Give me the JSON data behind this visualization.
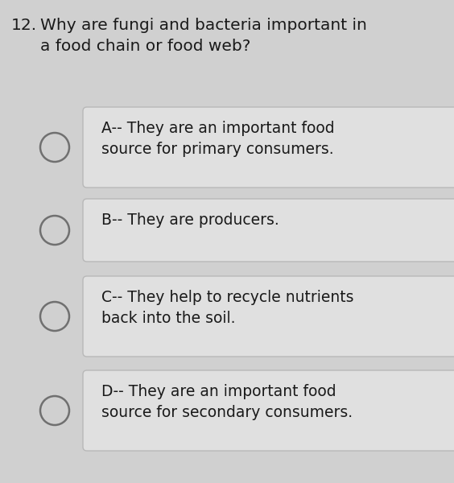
{
  "question_number": "12.",
  "question_text": "Why are fungi and bacteria important in\na food chain or food web?",
  "options": [
    "A-- They are an important food\nsource for primary consumers.",
    "B-- They are producers.",
    "C-- They help to recycle nutrients\nback into the soil.",
    "D-- They are an important food\nsource for secondary consumers."
  ],
  "bg_color": "#d0d0d0",
  "box_color": "#e0e0e0",
  "box_edge_color": "#b8b8b8",
  "text_color": "#1a1a1a",
  "question_fontsize": 14.5,
  "option_fontsize": 13.5,
  "circle_color": "#707070",
  "circle_linewidth": 1.8,
  "question_number_fontsize": 14.5
}
